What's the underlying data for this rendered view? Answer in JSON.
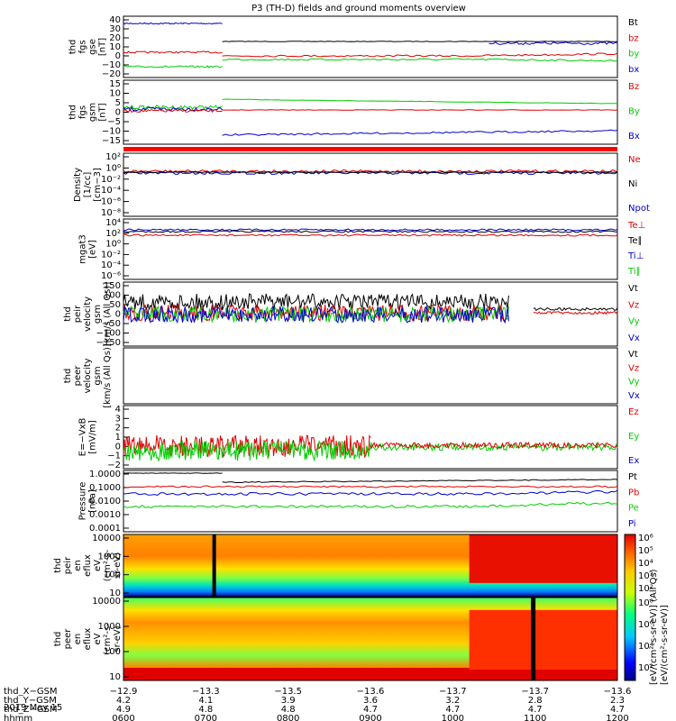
{
  "title": "P3 (TH-D) fields and ground moments overview",
  "date_label": "2019 May 15",
  "colors": {
    "black": "#000000",
    "red": "#e00000",
    "green": "#00cc00",
    "blue": "#0000cc",
    "darkgreen": "#008800"
  },
  "panels": [
    {
      "id": "fgs-gse",
      "ylabel": [
        "thd",
        "fgs",
        "gse",
        "[nT]"
      ],
      "ticks": [
        "40",
        "30",
        "20",
        "10",
        "0",
        "−10",
        "−20"
      ],
      "legend": [
        "Bt",
        "bz",
        "by",
        "bx"
      ],
      "legend_colors": [
        "black",
        "red",
        "green",
        "blue"
      ]
    },
    {
      "id": "fgs-gsm",
      "ylabel": [
        "thd",
        "fgs",
        "gsm",
        "[nT]"
      ],
      "ticks": [
        "15",
        "10",
        "5",
        "0",
        "−5",
        "−10",
        "−15"
      ],
      "legend": [
        "Bz",
        "By",
        "Bx"
      ],
      "legend_colors": [
        "red",
        "green",
        "blue"
      ]
    },
    {
      "id": "density",
      "ylabel": [
        "Density",
        "[1/cc]",
        "[cm−3]"
      ],
      "ticks": [
        "10²",
        "10⁰",
        "10⁻²",
        "10⁻⁴",
        "10⁻⁶",
        "10⁻⁸"
      ],
      "legend": [
        "Ne",
        "Ni",
        "Npot"
      ],
      "legend_colors": [
        "red",
        "black",
        "blue"
      ]
    },
    {
      "id": "temp",
      "ylabel": [
        "mgat3",
        "[eV]"
      ],
      "ticks": [
        "10⁴",
        "10²",
        "10⁰",
        "10⁻²",
        "10⁻⁴",
        "10⁻⁶"
      ],
      "legend": [
        "Te⊥",
        "Te∥",
        "Ti⊥",
        "Ti∥"
      ],
      "legend_colors": [
        "red",
        "black",
        "blue",
        "green"
      ]
    },
    {
      "id": "peir-vel",
      "ylabel": [
        "thd",
        "peir",
        "velocity",
        "gsm",
        "[km/s (All Qs)]"
      ],
      "ticks": [
        "150",
        "100",
        "50",
        "0",
        "−50",
        "−100",
        "−150"
      ],
      "legend": [
        "Vt",
        "Vz",
        "Vy",
        "Vx"
      ],
      "legend_colors": [
        "black",
        "red",
        "green",
        "blue"
      ]
    },
    {
      "id": "peer-vel",
      "ylabel": [
        "thd",
        "peer",
        "velocity",
        "gsm",
        "[km/s (All Qs)]"
      ],
      "ticks": [],
      "legend": [
        "Vt",
        "Vz",
        "Vy",
        "Vx"
      ],
      "legend_colors": [
        "black",
        "red",
        "green",
        "blue"
      ]
    },
    {
      "id": "efield",
      "ylabel": [
        "E=−VxB",
        "[mV/m]"
      ],
      "ticks": [
        "4",
        "3",
        "2",
        "1",
        "0",
        "−1",
        "−2"
      ],
      "legend": [
        "Ez",
        "Ey",
        "Ex"
      ],
      "legend_colors": [
        "red",
        "green",
        "blue"
      ]
    },
    {
      "id": "pressure",
      "ylabel": [
        "Pressure",
        "[nPa]"
      ],
      "ticks": [
        "1.0000",
        "0.1000",
        "0.0100",
        "0.0010",
        "0.0001"
      ],
      "legend": [
        "Pt",
        "Pb",
        "Pe",
        "Pi"
      ],
      "legend_colors": [
        "black",
        "red",
        "green",
        "blue"
      ]
    },
    {
      "id": "peir-eflux",
      "ylabel": [
        "thd",
        "peir",
        "en",
        "eflux",
        "eV",
        "(cm²-s-",
        "sr-eV)"
      ],
      "ticks": [
        "10000",
        "1000",
        "100",
        "10"
      ]
    },
    {
      "id": "peer-eflux",
      "ylabel": [
        "thd",
        "peer",
        "en",
        "eflux",
        "eV",
        "(cm²-s-",
        "sr-eV)"
      ],
      "ticks": [
        "10000",
        "1000",
        "100",
        "10"
      ]
    }
  ],
  "colorbar": {
    "label": "[eV/(cm²-s-sr-eV)]",
    "label2": "[eV/(cm²-s-sr-eV)] (All Qs)",
    "ticks_top": [
      "10⁶",
      "10⁵",
      "10⁴",
      "10³",
      "10²"
    ],
    "ticks_bottom": [
      "10⁸",
      "10⁶",
      "10⁴",
      "10²"
    ]
  },
  "xaxis": {
    "rows": [
      {
        "label": "thd_X−GSM",
        "values": [
          "−12.9",
          "−13.3",
          "−13.5",
          "−13.6",
          "−13.7",
          "−13.7",
          "−13.6"
        ]
      },
      {
        "label": "thd_Y−GSM",
        "values": [
          "4.2",
          "4.1",
          "3.9",
          "3.6",
          "3.2",
          "2.8",
          "2.3"
        ]
      },
      {
        "label": "thd_Z−GSM",
        "values": [
          "4.9",
          "4.8",
          "4.8",
          "4.7",
          "4.7",
          "4.7",
          "4.7"
        ]
      },
      {
        "label": "hhmm",
        "values": [
          "0600",
          "0700",
          "0800",
          "0900",
          "1000",
          "1100",
          "1200"
        ]
      }
    ]
  },
  "chart_data": {
    "type": "line",
    "title": "P3 (TH-D) fields and ground moments overview",
    "x": [
      "0600",
      "0700",
      "0800",
      "0900",
      "1000",
      "1100",
      "1200"
    ],
    "series_summary": [
      {
        "panel": "fgs-gse",
        "name": "Bt",
        "values": [
          35,
          35,
          17,
          16,
          16,
          15,
          14
        ]
      },
      {
        "panel": "fgs-gse",
        "name": "bz",
        "values": [
          2,
          2,
          2,
          2,
          3,
          4,
          5
        ]
      },
      {
        "panel": "fgs-gse",
        "name": "by",
        "values": [
          -8,
          -8,
          -1,
          -2,
          -3,
          -4,
          -4
        ]
      },
      {
        "panel": "fgs-gse",
        "name": "bx",
        "values": [
          33,
          33,
          16,
          15,
          14,
          14,
          13
        ]
      },
      {
        "panel": "fgs-gsm",
        "name": "Bz",
        "values": [
          0,
          0,
          0,
          0,
          1,
          2,
          3
        ]
      },
      {
        "panel": "fgs-gsm",
        "name": "By",
        "values": [
          0,
          0,
          6,
          4,
          2,
          0,
          -2
        ]
      },
      {
        "panel": "fgs-gsm",
        "name": "Bx",
        "values": [
          0,
          0,
          -14,
          -13,
          -11,
          -10,
          -12
        ]
      }
    ]
  }
}
